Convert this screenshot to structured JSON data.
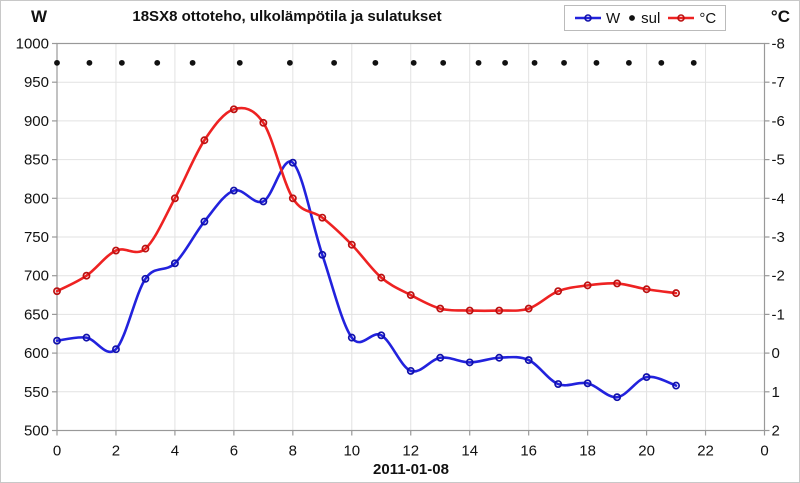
{
  "header": {
    "left_axis_unit": "W",
    "right_axis_unit": "°C",
    "title": "18SX8 ottoteho, ulkolämpötila ja sulatukset"
  },
  "legend": {
    "items": [
      {
        "label": "W",
        "marker": "line-circle",
        "color": "#2222dd"
      },
      {
        "label": "sul",
        "marker": "dot",
        "color": "#111111"
      },
      {
        "label": "°C",
        "marker": "line-circle",
        "color": "#ee2222"
      }
    ]
  },
  "x_axis": {
    "tick_hours": [
      0,
      2,
      4,
      6,
      8,
      10,
      12,
      14,
      16,
      18,
      20,
      22,
      24
    ],
    "tick_labels": [
      "0",
      "2",
      "4",
      "6",
      "8",
      "10",
      "12",
      "14",
      "16",
      "18",
      "20",
      "22",
      "0"
    ],
    "date_label": "2011-01-08",
    "range_hours": [
      0,
      24
    ]
  },
  "y_axis_left": {
    "unit": "W",
    "ticks": [
      1000,
      950,
      900,
      850,
      800,
      750,
      700,
      650,
      600,
      550,
      500
    ],
    "range": [
      500,
      1000
    ]
  },
  "y_axis_right": {
    "unit": "°C",
    "ticks": [
      -8,
      -7,
      -6,
      -5,
      -4,
      -3,
      -2,
      -1,
      0,
      1,
      2
    ],
    "range": [
      -8,
      2
    ]
  },
  "colors": {
    "series_w": "#2222dd",
    "series_w_marker": "#1111aa",
    "series_temp": "#ee2222",
    "series_temp_marker": "#bb1111",
    "sul_dot": "#111111",
    "grid": "#e2e2e2",
    "frame": "#999999",
    "text": "#111111"
  },
  "chart_data": {
    "type": "line",
    "title": "18SX8 ottoteho, ulkolämpötila ja sulatukset",
    "xlabel": "2011-01-08",
    "x_hours": [
      0,
      1,
      2,
      3,
      4,
      5,
      6,
      7,
      8,
      9,
      10,
      11,
      12,
      13,
      14,
      15,
      16,
      17,
      18,
      19,
      20,
      21
    ],
    "left_ylim": [
      500,
      1000
    ],
    "right_ylim": [
      -8,
      2
    ],
    "grid": true,
    "legend_position": "top-right",
    "series": [
      {
        "name": "W",
        "axis": "left",
        "type": "smooth-line",
        "color": "#2222dd",
        "values": [
          616,
          620,
          605,
          696,
          716,
          770,
          810,
          796,
          846,
          727,
          620,
          623,
          577,
          594,
          588,
          594,
          591,
          560,
          561,
          543,
          569,
          558
        ]
      },
      {
        "name": "°C",
        "axis": "right",
        "type": "smooth-line",
        "color": "#ee2222",
        "values": [
          -1.6,
          -2.0,
          -2.65,
          -2.7,
          -4.0,
          -5.5,
          -6.3,
          -5.95,
          -4.0,
          -3.5,
          -2.8,
          -1.95,
          -1.5,
          -1.15,
          -1.1,
          -1.1,
          -1.15,
          -1.6,
          -1.75,
          -1.8,
          -1.65,
          -1.55
        ]
      },
      {
        "name": "sul",
        "axis": "left",
        "type": "event-dots",
        "color": "#111111",
        "level_w": 975,
        "event_hours": [
          0.0,
          1.1,
          2.2,
          3.4,
          4.6,
          6.2,
          7.9,
          9.4,
          10.8,
          12.1,
          13.1,
          14.3,
          15.2,
          16.2,
          17.2,
          18.3,
          19.4,
          20.5,
          21.6
        ]
      }
    ]
  }
}
